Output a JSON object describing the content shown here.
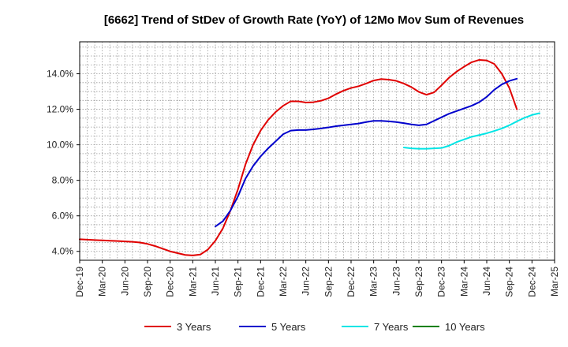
{
  "chart_data": {
    "type": "line",
    "title": "[6662]  Trend of StDev of Growth Rate (YoY) of 12Mo Mov Sum of Revenues",
    "xlabel": "",
    "ylabel": "",
    "ylim": [
      3.5,
      15.8
    ],
    "yticks": [
      4,
      6,
      8,
      10,
      12,
      14
    ],
    "ytick_labels": [
      "4.0%",
      "6.0%",
      "8.0%",
      "10.0%",
      "12.0%",
      "14.0%"
    ],
    "x_start": "Dec-19",
    "x_range": [
      0,
      63
    ],
    "xtick_labels": [
      "Dec-19",
      "Mar-20",
      "Jun-20",
      "Sep-20",
      "Dec-20",
      "Mar-21",
      "Jun-21",
      "Sep-21",
      "Dec-21",
      "Mar-22",
      "Jun-22",
      "Sep-22",
      "Dec-22",
      "Mar-23",
      "Jun-23",
      "Sep-23",
      "Dec-23",
      "Mar-24",
      "Jun-24",
      "Sep-24",
      "Dec-24",
      "Mar-25"
    ],
    "grid": true,
    "legend_position": "bottom",
    "series": [
      {
        "name": "3 Years",
        "color": "#e00000",
        "start_index": 0,
        "values": [
          4.68,
          4.66,
          4.64,
          4.62,
          4.6,
          4.58,
          4.56,
          4.54,
          4.5,
          4.42,
          4.3,
          4.15,
          4.0,
          3.9,
          3.8,
          3.77,
          3.82,
          4.1,
          4.6,
          5.3,
          6.3,
          7.5,
          8.9,
          10.0,
          10.8,
          11.4,
          11.85,
          12.2,
          12.45,
          12.45,
          12.38,
          12.4,
          12.48,
          12.62,
          12.85,
          13.05,
          13.2,
          13.3,
          13.45,
          13.62,
          13.7,
          13.67,
          13.6,
          13.45,
          13.25,
          12.98,
          12.82,
          12.95,
          13.35,
          13.78,
          14.12,
          14.4,
          14.65,
          14.78,
          14.75,
          14.55,
          14.0,
          13.2,
          12.0
        ]
      },
      {
        "name": "5 Years",
        "color": "#0000cc",
        "start_index": 18,
        "values": [
          5.4,
          5.7,
          6.3,
          7.1,
          8.1,
          8.8,
          9.35,
          9.8,
          10.2,
          10.6,
          10.8,
          10.83,
          10.83,
          10.87,
          10.92,
          10.98,
          11.05,
          11.1,
          11.15,
          11.2,
          11.28,
          11.35,
          11.35,
          11.32,
          11.28,
          11.22,
          11.15,
          11.1,
          11.15,
          11.35,
          11.55,
          11.75,
          11.9,
          12.05,
          12.2,
          12.4,
          12.7,
          13.1,
          13.4,
          13.6,
          13.72
        ]
      },
      {
        "name": "7 Years",
        "color": "#00e5e5",
        "start_index": 43,
        "values": [
          9.85,
          9.8,
          9.78,
          9.78,
          9.8,
          9.82,
          9.95,
          10.15,
          10.3,
          10.45,
          10.55,
          10.65,
          10.78,
          10.92,
          11.1,
          11.32,
          11.52,
          11.68,
          11.78
        ]
      },
      {
        "name": "10 Years",
        "color": "#008000",
        "start_index": 0,
        "values": []
      }
    ]
  }
}
